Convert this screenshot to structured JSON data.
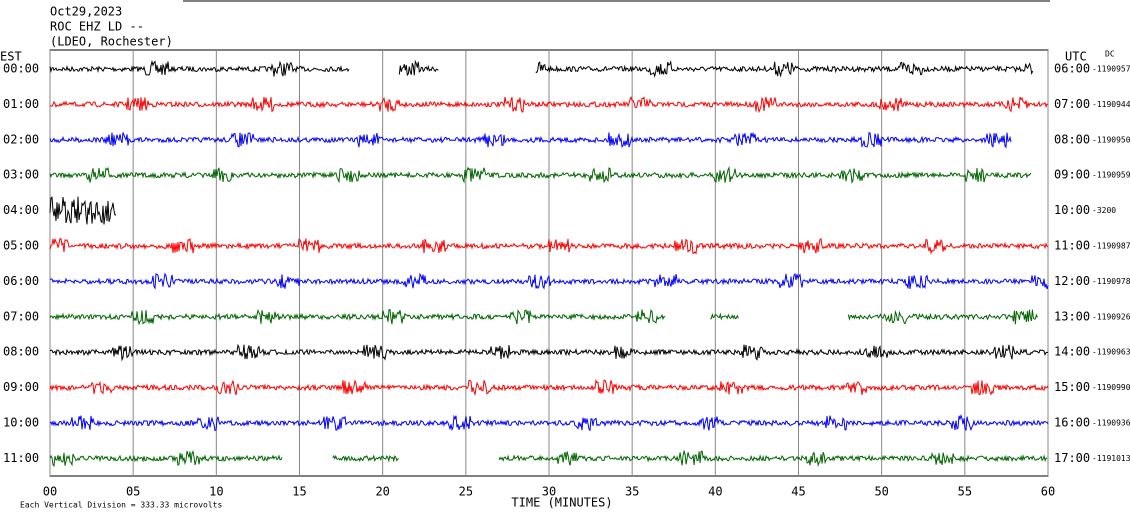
{
  "chart_data": {
    "type": "helicorder",
    "title": "Oct29,2023",
    "station": "ROC EHZ LD --",
    "network": "(LDEO, Rochester)",
    "left_axis_label": "EST",
    "right_axis_label": "UTC",
    "offset_label": "DC",
    "xlabel": "TIME (MINUTES)",
    "footer": "Each Vertical Division =  333.33 microvolts",
    "xlim": [
      0,
      60
    ],
    "xticks": [
      {
        "value": 0,
        "label": "00"
      },
      {
        "value": 5,
        "label": "05"
      },
      10,
      15,
      20,
      25,
      30,
      35,
      40,
      45,
      50,
      55,
      60
    ],
    "grid": true,
    "rows": [
      {
        "est": "00:00",
        "utc": "06:00",
        "offset": "-1190957",
        "color": "#000000",
        "segments": [
          [
            0,
            18
          ],
          [
            21,
            23.4
          ],
          [
            29.2,
            59.1
          ]
        ]
      },
      {
        "est": "01:00",
        "utc": "07:00",
        "offset": "-1190944",
        "color": "#ff0000",
        "segments": [
          [
            0,
            60
          ]
        ]
      },
      {
        "est": "02:00",
        "utc": "08:00",
        "offset": "-1190950",
        "color": "#0000ff",
        "segments": [
          [
            0,
            57.8
          ]
        ]
      },
      {
        "est": "03:00",
        "utc": "09:00",
        "offset": "-1190959",
        "color": "#006400",
        "segments": [
          [
            0,
            59
          ]
        ]
      },
      {
        "est": "04:00",
        "utc": "10:00",
        "offset": "-3200",
        "color": "#000000",
        "segments": [
          [
            0,
            4
          ]
        ]
      },
      {
        "est": "05:00",
        "utc": "11:00",
        "offset": "-1190987",
        "color": "#ff0000",
        "segments": [
          [
            0,
            60
          ]
        ]
      },
      {
        "est": "06:00",
        "utc": "12:00",
        "offset": "-1190978",
        "color": "#0000ff",
        "segments": [
          [
            0,
            60
          ]
        ]
      },
      {
        "est": "07:00",
        "utc": "13:00",
        "offset": "-1190926",
        "color": "#006400",
        "segments": [
          [
            0,
            37
          ],
          [
            39.7,
            41.4
          ],
          [
            48,
            59.4
          ]
        ]
      },
      {
        "est": "08:00",
        "utc": "14:00",
        "offset": "-1190963",
        "color": "#000000",
        "segments": [
          [
            0,
            60
          ]
        ]
      },
      {
        "est": "09:00",
        "utc": "15:00",
        "offset": "-1190990",
        "color": "#ff0000",
        "segments": [
          [
            0,
            60
          ]
        ]
      },
      {
        "est": "10:00",
        "utc": "16:00",
        "offset": "-1190936",
        "color": "#0000ff",
        "segments": [
          [
            0,
            60
          ]
        ]
      },
      {
        "est": "11:00",
        "utc": "17:00",
        "offset": "-1191013",
        "color": "#006400",
        "segments": [
          [
            0,
            14
          ],
          [
            17,
            21
          ],
          [
            27,
            60
          ]
        ]
      }
    ]
  }
}
